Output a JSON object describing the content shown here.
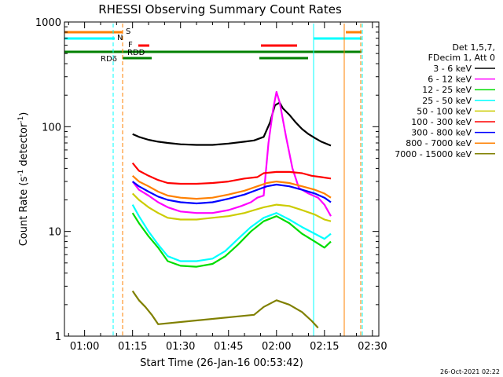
{
  "chart_data": {
    "type": "line",
    "title": "RHESSI Observing Summary Count Rates",
    "xlabel": "Start Time (26-Jan-16 00:53:42)",
    "ylabel": "Count Rate (s⁻¹ detector⁻¹)",
    "ylabel_parts": [
      "Count Rate (s",
      "-1",
      " detector",
      "-1",
      ")"
    ],
    "yscale": "log",
    "ylim": [
      1,
      1000
    ],
    "xlim_minutes": [
      53.7,
      152
    ],
    "x_tick_labels": [
      "01:00",
      "01:15",
      "01:30",
      "01:45",
      "02:00",
      "02:15",
      "02:30"
    ],
    "x_tick_minutes": [
      60,
      75,
      90,
      105,
      120,
      135,
      150
    ],
    "y_tick_labels": [
      "1",
      "10",
      "100",
      "1000"
    ],
    "y_tick_values": [
      1,
      10,
      100,
      1000
    ],
    "timestamp": "26-Oct-2021 02:22",
    "legend_header": [
      "Det 1,5,7,",
      "FDecim 1, Att 0"
    ],
    "series": [
      {
        "name": "3 - 6 keV",
        "color": "#000000",
        "points": [
          [
            75,
            85
          ],
          [
            77,
            80
          ],
          [
            80,
            75
          ],
          [
            83,
            72
          ],
          [
            86,
            70
          ],
          [
            90,
            68
          ],
          [
            95,
            67
          ],
          [
            100,
            67
          ],
          [
            105,
            69
          ],
          [
            110,
            72
          ],
          [
            113,
            74
          ],
          [
            116,
            80
          ],
          [
            118,
            110
          ],
          [
            119.5,
            160
          ],
          [
            121,
            170
          ],
          [
            122,
            150
          ],
          [
            124,
            130
          ],
          [
            126,
            110
          ],
          [
            128,
            95
          ],
          [
            130,
            85
          ],
          [
            132,
            78
          ],
          [
            134,
            72
          ],
          [
            137,
            66
          ]
        ]
      },
      {
        "name": "6 - 12 keV",
        "color": "#ff00ff",
        "points": [
          [
            75,
            30
          ],
          [
            77,
            25
          ],
          [
            80,
            22
          ],
          [
            83,
            19
          ],
          [
            86,
            17
          ],
          [
            90,
            15.5
          ],
          [
            95,
            15
          ],
          [
            100,
            15
          ],
          [
            105,
            16
          ],
          [
            109,
            17.5
          ],
          [
            112,
            19
          ],
          [
            114,
            21
          ],
          [
            116,
            22
          ],
          [
            117.5,
            70
          ],
          [
            119,
            150
          ],
          [
            120,
            215
          ],
          [
            121,
            170
          ],
          [
            123,
            80
          ],
          [
            125,
            40
          ],
          [
            127,
            26
          ],
          [
            130,
            23
          ],
          [
            133,
            21
          ],
          [
            135,
            18
          ],
          [
            137,
            14
          ]
        ]
      },
      {
        "name": "12 - 25 keV",
        "color": "#00dd00",
        "points": [
          [
            75,
            15
          ],
          [
            77,
            12
          ],
          [
            80,
            9
          ],
          [
            83,
            7
          ],
          [
            86,
            5.2
          ],
          [
            90,
            4.7
          ],
          [
            95,
            4.6
          ],
          [
            100,
            4.9
          ],
          [
            104,
            5.8
          ],
          [
            108,
            7.5
          ],
          [
            112,
            10
          ],
          [
            116,
            12.5
          ],
          [
            120,
            14
          ],
          [
            124,
            12
          ],
          [
            128,
            9.5
          ],
          [
            132,
            8
          ],
          [
            135,
            7
          ],
          [
            137,
            8
          ]
        ]
      },
      {
        "name": "25 - 50 keV",
        "color": "#00ffff",
        "points": [
          [
            75,
            18
          ],
          [
            77,
            14
          ],
          [
            80,
            10
          ],
          [
            83,
            7.5
          ],
          [
            86,
            5.8
          ],
          [
            90,
            5.2
          ],
          [
            95,
            5.2
          ],
          [
            100,
            5.5
          ],
          [
            104,
            6.5
          ],
          [
            108,
            8.5
          ],
          [
            112,
            11
          ],
          [
            116,
            13.5
          ],
          [
            120,
            15
          ],
          [
            124,
            13
          ],
          [
            128,
            11
          ],
          [
            132,
            9.5
          ],
          [
            135,
            8.5
          ],
          [
            137,
            9.5
          ]
        ]
      },
      {
        "name": "50 - 100 keV",
        "color": "#cccc00",
        "points": [
          [
            75,
            23
          ],
          [
            77,
            20
          ],
          [
            80,
            17
          ],
          [
            83,
            15
          ],
          [
            86,
            13.5
          ],
          [
            90,
            13
          ],
          [
            95,
            13
          ],
          [
            100,
            13.5
          ],
          [
            105,
            14
          ],
          [
            110,
            15
          ],
          [
            113,
            16
          ],
          [
            116,
            17
          ],
          [
            120,
            18
          ],
          [
            124,
            17.5
          ],
          [
            128,
            16
          ],
          [
            132,
            14.5
          ],
          [
            135,
            13
          ],
          [
            137,
            12.5
          ]
        ]
      },
      {
        "name": "100 - 300 keV",
        "color": "#ff0000",
        "points": [
          [
            75,
            45
          ],
          [
            77,
            38
          ],
          [
            80,
            34
          ],
          [
            83,
            31
          ],
          [
            86,
            29
          ],
          [
            90,
            28.5
          ],
          [
            95,
            28.5
          ],
          [
            100,
            29
          ],
          [
            105,
            30
          ],
          [
            110,
            32
          ],
          [
            114,
            33
          ],
          [
            116,
            36
          ],
          [
            120,
            37
          ],
          [
            124,
            37
          ],
          [
            128,
            36
          ],
          [
            131,
            34
          ],
          [
            134,
            33
          ],
          [
            137,
            32
          ]
        ]
      },
      {
        "name": "300 - 800 keV",
        "color": "#0000ff",
        "points": [
          [
            75,
            30
          ],
          [
            77,
            27
          ],
          [
            80,
            24
          ],
          [
            83,
            21.5
          ],
          [
            86,
            20
          ],
          [
            90,
            19
          ],
          [
            95,
            18.5
          ],
          [
            100,
            19
          ],
          [
            105,
            20.5
          ],
          [
            110,
            22.5
          ],
          [
            114,
            25
          ],
          [
            117,
            27
          ],
          [
            120,
            28
          ],
          [
            124,
            27
          ],
          [
            128,
            25
          ],
          [
            132,
            23
          ],
          [
            135,
            21
          ],
          [
            137,
            19
          ]
        ]
      },
      {
        "name": "800 - 7000 keV",
        "color": "#ff8000",
        "points": [
          [
            75,
            34
          ],
          [
            77,
            30
          ],
          [
            80,
            27
          ],
          [
            83,
            24
          ],
          [
            86,
            22
          ],
          [
            90,
            21
          ],
          [
            95,
            20.5
          ],
          [
            100,
            21
          ],
          [
            105,
            22.5
          ],
          [
            110,
            24.5
          ],
          [
            114,
            27
          ],
          [
            117,
            29
          ],
          [
            120,
            30
          ],
          [
            124,
            29
          ],
          [
            128,
            27
          ],
          [
            132,
            25
          ],
          [
            135,
            23
          ],
          [
            137,
            21
          ]
        ]
      },
      {
        "name": "7000 - 15000 keV",
        "color": "#808000",
        "points": [
          [
            75,
            2.7
          ],
          [
            77,
            2.2
          ],
          [
            79,
            1.9
          ],
          [
            81,
            1.6
          ],
          [
            83,
            1.3
          ],
          [
            113,
            1.6
          ],
          [
            116,
            1.9
          ],
          [
            120,
            2.2
          ],
          [
            124,
            2.0
          ],
          [
            128,
            1.7
          ],
          [
            131,
            1.4
          ],
          [
            133,
            1.2
          ]
        ]
      }
    ],
    "flag_bars": [
      {
        "label": "S",
        "color": "#ff8000"
      },
      {
        "label": "N",
        "color": "#00ffff"
      },
      {
        "label": "F",
        "color": "#ff0000"
      },
      {
        "label": "RDD",
        "color": "#008000"
      },
      {
        "label": "RD6",
        "color": "#008000"
      }
    ]
  }
}
